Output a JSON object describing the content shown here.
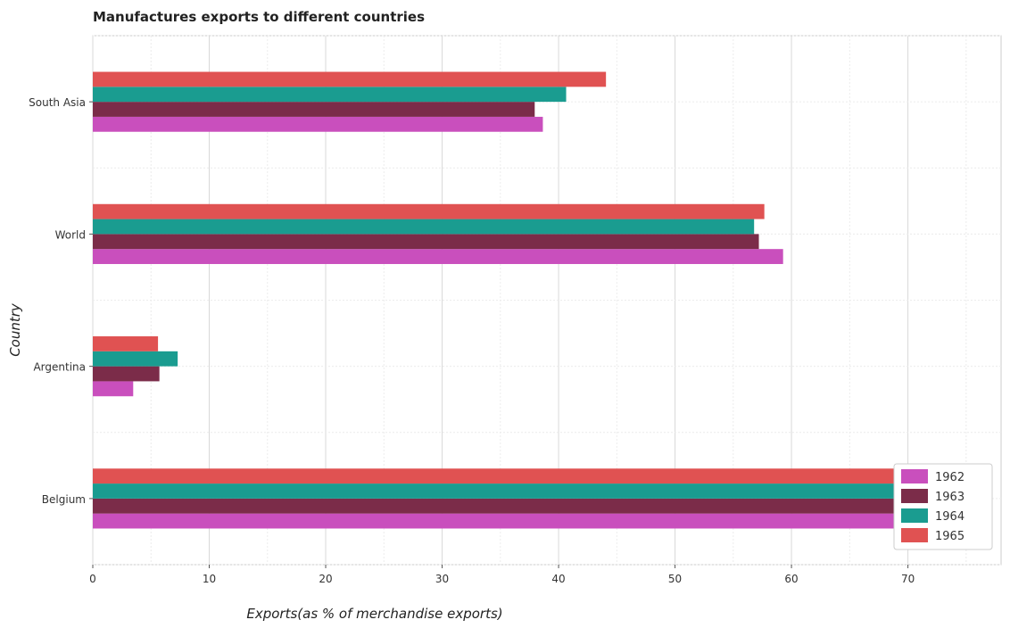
{
  "chart_data": {
    "type": "bar",
    "orientation": "horizontal",
    "title": "Manufactures exports to different countries",
    "xlabel": "Exports(as % of merchandise exports)",
    "ylabel": "Country",
    "categories": [
      "South Asia",
      "World",
      "Argentina",
      "Belgium"
    ],
    "series": [
      {
        "name": "1962",
        "color": "#c94fbd",
        "values": [
          38.65,
          59.28,
          3.47,
          73.0
        ]
      },
      {
        "name": "1963",
        "color": "#7b2c49",
        "values": [
          37.95,
          57.2,
          5.72,
          71.58
        ]
      },
      {
        "name": "1964",
        "color": "#1a9c90",
        "values": [
          40.65,
          56.79,
          7.29,
          73.65
        ]
      },
      {
        "name": "1965",
        "color": "#e05252",
        "values": [
          44.07,
          57.67,
          5.6,
          73.63
        ]
      }
    ],
    "xlim": [
      0,
      78
    ],
    "xticks": [
      0,
      10,
      20,
      30,
      40,
      50,
      60,
      70
    ],
    "grid": true,
    "legend_position": "bottom-right"
  }
}
